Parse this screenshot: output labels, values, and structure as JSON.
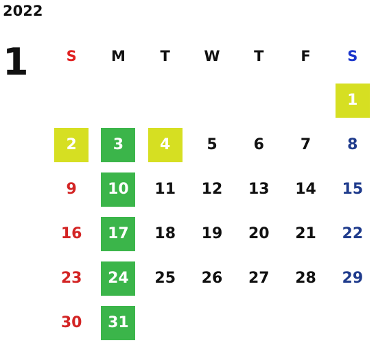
{
  "calendar": {
    "year": "2022",
    "month": "1",
    "weekdays": [
      "S",
      "M",
      "T",
      "W",
      "T",
      "F",
      "S"
    ],
    "weeks": [
      [
        null,
        null,
        null,
        null,
        null,
        null,
        "1"
      ],
      [
        "2",
        "3",
        "4",
        "5",
        "6",
        "7",
        "8"
      ],
      [
        "9",
        "10",
        "11",
        "12",
        "13",
        "14",
        "15"
      ],
      [
        "16",
        "17",
        "18",
        "19",
        "20",
        "21",
        "22"
      ],
      [
        "23",
        "24",
        "25",
        "26",
        "27",
        "28",
        "29"
      ],
      [
        "30",
        "31",
        null,
        null,
        null,
        null,
        null
      ]
    ],
    "highlight_yellow": [
      "1",
      "2",
      "4"
    ],
    "highlight_green": [
      "3",
      "10",
      "17",
      "24",
      "31"
    ],
    "colors": {
      "sunday": "#d32424",
      "saturday": "#1f3b8c",
      "holiday_yellow": "#d6df22",
      "green": "#3bb54a"
    }
  }
}
